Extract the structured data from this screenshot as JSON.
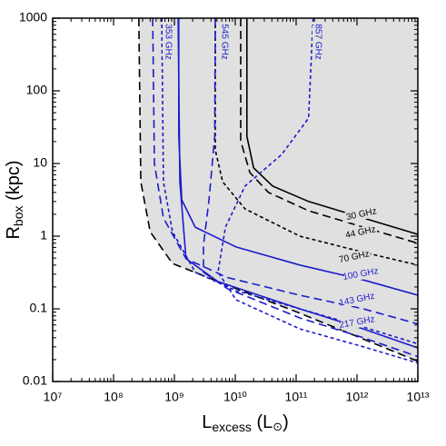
{
  "chart_data": {
    "type": "line",
    "xscale": "log",
    "yscale": "log",
    "xlabel": [
      "L",
      "excess",
      " (L",
      "⊙",
      ")"
    ],
    "ylabel": [
      "R",
      "box",
      " (kpc)"
    ],
    "xlim": [
      10000000.0,
      10000000000000.0
    ],
    "ylim": [
      0.01,
      1000
    ],
    "xticks": [
      {
        "value": 10000000.0,
        "label": "10⁷"
      },
      {
        "value": 100000000.0,
        "label": "10⁸"
      },
      {
        "value": 1000000000.0,
        "label": "10⁹"
      },
      {
        "value": 10000000000.0,
        "label": "10¹⁰"
      },
      {
        "value": 100000000000.0,
        "label": "10¹¹"
      },
      {
        "value": 1000000000000.0,
        "label": "10¹²"
      },
      {
        "value": 10000000000000.0,
        "label": "10¹³"
      }
    ],
    "yticks": [
      0.01,
      0.1,
      1,
      10,
      100,
      1000
    ],
    "series": [
      {
        "color": "#000000",
        "dash": "long",
        "fill": "#e0e0e0",
        "x": [
          260000000.0,
          280000000.0,
          400000000.0,
          930000000.0,
          10300000000.0,
          115000000000.0,
          10000000000000.0
        ],
        "values": [
          1000,
          5.6,
          1.15,
          0.42,
          0.19,
          0.087,
          0.019
        ]
      },
      {
        "name": "30 GHz",
        "color": "#000000",
        "dash": "solid",
        "x": [
          15500000000.0,
          15500000000.0,
          20000000000.0,
          41000000000.0,
          160000000000.0,
          1270000000000.0,
          10000000000000.0
        ],
        "values": [
          1000,
          23.7,
          8.7,
          4.9,
          3.0,
          1.78,
          1.06
        ]
      },
      {
        "name": "44 GHz",
        "color": "#000000",
        "dash": "long",
        "x": [
          12300000000.0,
          12300000000.0,
          17400000000.0,
          35000000000.0,
          160000000000.0,
          1270000000000.0,
          10000000000000.0
        ],
        "values": [
          1000,
          20.5,
          7.5,
          4.0,
          2.24,
          1.33,
          0.8
        ]
      },
      {
        "name": "70 GHz",
        "color": "#000000",
        "dash": "short",
        "x": [
          4700000000.0,
          4700000000.0,
          6200000000.0,
          14500000000.0,
          115000000000.0,
          1270000000000.0,
          10000000000000.0
        ],
        "values": [
          1000,
          15.4,
          5.6,
          2.37,
          1.0,
          0.6,
          0.4
        ]
      },
      {
        "name": "100 GHz",
        "color": "#1c1ccc",
        "dash": "solid",
        "x": [
          1180000000.0,
          1180000000.0,
          1320000000.0,
          2200000000.0,
          10300000000.0,
          115000000000.0,
          1270000000000.0,
          10000000000000.0
        ],
        "values": [
          1000,
          23.7,
          3.16,
          1.33,
          0.71,
          0.4,
          0.25,
          0.154
        ]
      },
      {
        "name": "143 GHz",
        "color": "#1c1ccc",
        "dash": "long",
        "x": [
          440000000.0,
          470000000.0,
          660000000.0,
          1550000000.0,
          7400000000.0,
          115000000000.0,
          1270000000000.0,
          10000000000000.0
        ],
        "values": [
          1000,
          10,
          1.78,
          0.49,
          0.27,
          0.154,
          0.1,
          0.062
        ]
      },
      {
        "name": "217 GHz",
        "color": "#1c1ccc",
        "dash": "short",
        "x": [
          620000000.0,
          660000000.0,
          930000000.0,
          2200000000.0,
          10300000000.0,
          115000000000.0,
          1270000000000.0,
          10000000000000.0
        ],
        "values": [
          1000,
          5.6,
          1.15,
          0.32,
          0.178,
          0.1,
          0.056,
          0.033
        ]
      },
      {
        "name": "353 GHz",
        "color": "#1c1ccc",
        "dash": "solid",
        "x": [
          1150000000.0,
          1230000000.0,
          1550000000.0,
          5200000000.0,
          115000000000.0,
          1270000000000.0,
          10000000000000.0
        ],
        "values": [
          1000,
          5.6,
          0.49,
          0.237,
          0.1,
          0.053,
          0.029
        ]
      },
      {
        "name": "545 GHz",
        "color": "#1c1ccc",
        "dash": "long",
        "x": [
          4700000000.0,
          4600000000.0,
          3700000000.0,
          3000000000.0,
          3000000000.0,
          7400000000.0,
          115000000000.0,
          1270000000000.0,
          10000000000000.0
        ],
        "values": [
          1000,
          23.7,
          3.16,
          0.75,
          0.32,
          0.19,
          0.075,
          0.04,
          0.022
        ]
      },
      {
        "name": "857 GHz",
        "color": "#1c1ccc",
        "dash": "short",
        "x": [
          190000000000.0,
          160000000000.0,
          58000000000.0,
          14500000000.0,
          6900000000.0,
          5200000000.0,
          10300000000.0,
          115000000000.0,
          1270000000000.0,
          10000000000000.0
        ],
        "values": [
          1000,
          42,
          13.3,
          4.9,
          1.33,
          0.32,
          0.133,
          0.053,
          0.03,
          0.018
        ]
      }
    ]
  }
}
